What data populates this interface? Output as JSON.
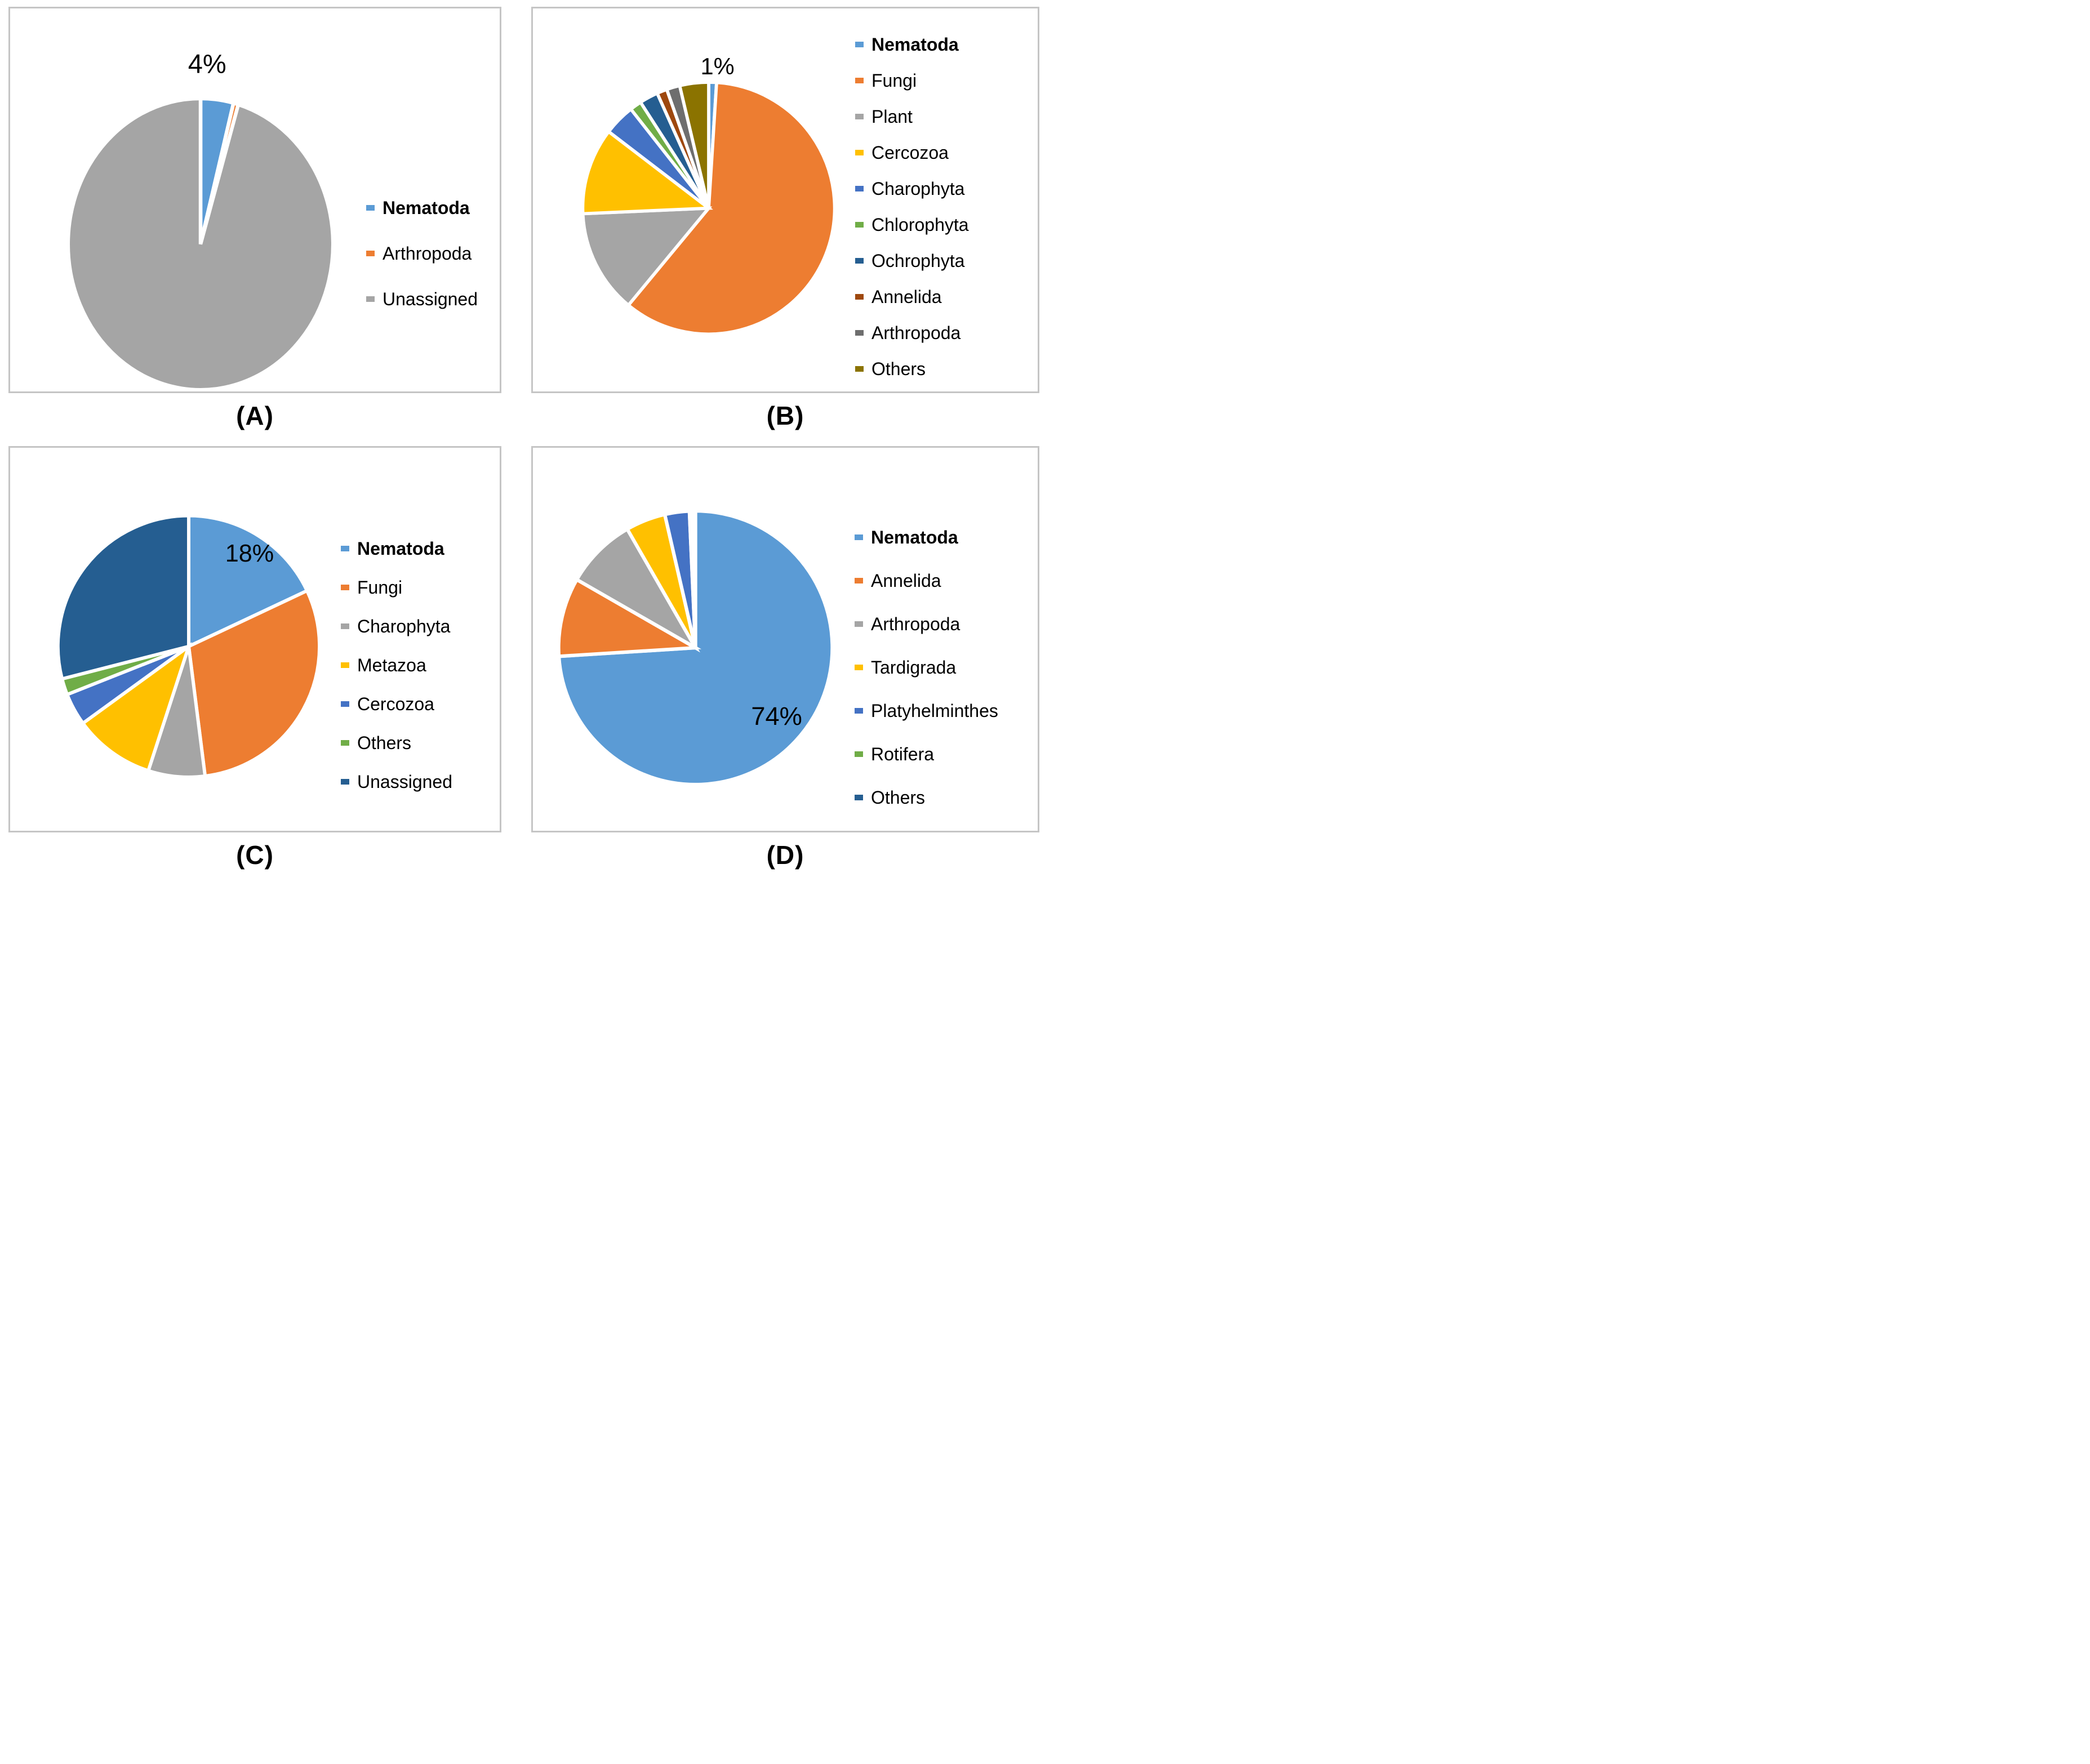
{
  "chart_data": [
    {
      "type": "pie",
      "panel": "(A)",
      "data_label": {
        "text": "4%",
        "applies_to": "Nematoda"
      },
      "legend_position": "right",
      "start_angle_deg": 0,
      "direction": "clockwise",
      "slices": [
        {
          "label": "Nematoda",
          "value": 4,
          "color": "#5B9BD5",
          "bold": true
        },
        {
          "label": "Arthropoda",
          "value": 0.6,
          "color": "#ED7D31",
          "bold": false
        },
        {
          "label": "Unassigned",
          "value": 95.4,
          "color": "#A5A5A5",
          "bold": false
        }
      ]
    },
    {
      "type": "pie",
      "panel": "(B)",
      "data_label": {
        "text": "1%",
        "applies_to": "Nematoda"
      },
      "legend_position": "right",
      "start_angle_deg": 0,
      "direction": "clockwise",
      "slices": [
        {
          "label": "Nematoda",
          "value": 1,
          "color": "#5B9BD5",
          "bold": true
        },
        {
          "label": "Fungi",
          "value": 60,
          "color": "#ED7D31",
          "bold": false
        },
        {
          "label": "Plant",
          "value": 13.3,
          "color": "#A5A5A5",
          "bold": false
        },
        {
          "label": "Cercozoa",
          "value": 11.1,
          "color": "#FFC000",
          "bold": false
        },
        {
          "label": "Charophyta",
          "value": 4,
          "color": "#4472C4",
          "bold": false
        },
        {
          "label": "Chlorophyta",
          "value": 1.5,
          "color": "#70AD47",
          "bold": false
        },
        {
          "label": "Ochrophyta",
          "value": 2.4,
          "color": "#255E91",
          "bold": false
        },
        {
          "label": "Annelida",
          "value": 1.3,
          "color": "#9E480E",
          "bold": false
        },
        {
          "label": "Arthropoda",
          "value": 1.7,
          "color": "#6E6E6E",
          "bold": false
        },
        {
          "label": "Others",
          "value": 3.7,
          "color": "#8B7300",
          "bold": false
        }
      ]
    },
    {
      "type": "pie",
      "panel": "(C)",
      "data_label": {
        "text": "18%",
        "applies_to": "Nematoda"
      },
      "legend_position": "right",
      "start_angle_deg": 0,
      "direction": "clockwise",
      "slices": [
        {
          "label": "Nematoda",
          "value": 18,
          "color": "#5B9BD5",
          "bold": true
        },
        {
          "label": "Fungi",
          "value": 30,
          "color": "#ED7D31",
          "bold": false
        },
        {
          "label": "Charophyta",
          "value": 7,
          "color": "#A5A5A5",
          "bold": false
        },
        {
          "label": "Metazoa",
          "value": 10,
          "color": "#FFC000",
          "bold": false
        },
        {
          "label": "Cercozoa",
          "value": 4,
          "color": "#4472C4",
          "bold": false
        },
        {
          "label": "Others",
          "value": 2,
          "color": "#70AD47",
          "bold": false
        },
        {
          "label": "Unassigned",
          "value": 29,
          "color": "#255E91",
          "bold": false
        }
      ]
    },
    {
      "type": "pie",
      "panel": "(D)",
      "data_label": {
        "text": "74%",
        "applies_to": "Nematoda"
      },
      "legend_position": "right",
      "start_angle_deg": 0,
      "direction": "clockwise",
      "slices": [
        {
          "label": "Nematoda",
          "value": 74,
          "color": "#5B9BD5",
          "bold": true
        },
        {
          "label": "Annelida",
          "value": 9.3,
          "color": "#ED7D31",
          "bold": false
        },
        {
          "label": "Arthropoda",
          "value": 8.4,
          "color": "#A5A5A5",
          "bold": false
        },
        {
          "label": "Tardigrada",
          "value": 4.7,
          "color": "#FFC000",
          "bold": false
        },
        {
          "label": "Platyhelminthes",
          "value": 2.9,
          "color": "#4472C4",
          "bold": false
        },
        {
          "label": "Rotifera",
          "value": 0.4,
          "color": "#70AD47",
          "bold": false
        },
        {
          "label": "Others",
          "value": 0.3,
          "color": "#255E91",
          "bold": false
        }
      ]
    }
  ],
  "style": {
    "slice_border_color": "#FFFFFF",
    "panel_border_color": "#C5C5C5",
    "text_color": "#000000",
    "background": "#FFFFFF"
  }
}
